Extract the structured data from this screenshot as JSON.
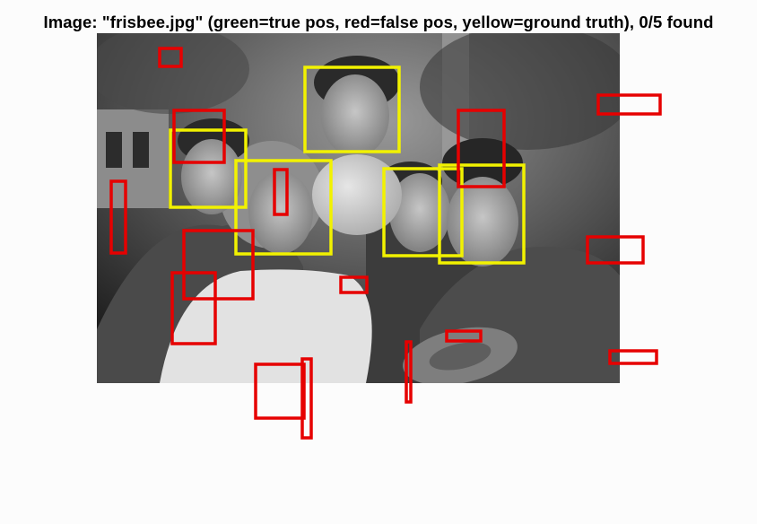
{
  "figure": {
    "title": "Image: \"frisbee.jpg\" (green=true pos, red=false pos, yellow=ground truth), 0/5 found",
    "image_alt": "frisbee.jpg",
    "colors": {
      "true_pos": "#00cc00",
      "false_pos": "#e60000",
      "ground_truth": "#f2f200",
      "background": "#fcfcfc"
    }
  }
}
